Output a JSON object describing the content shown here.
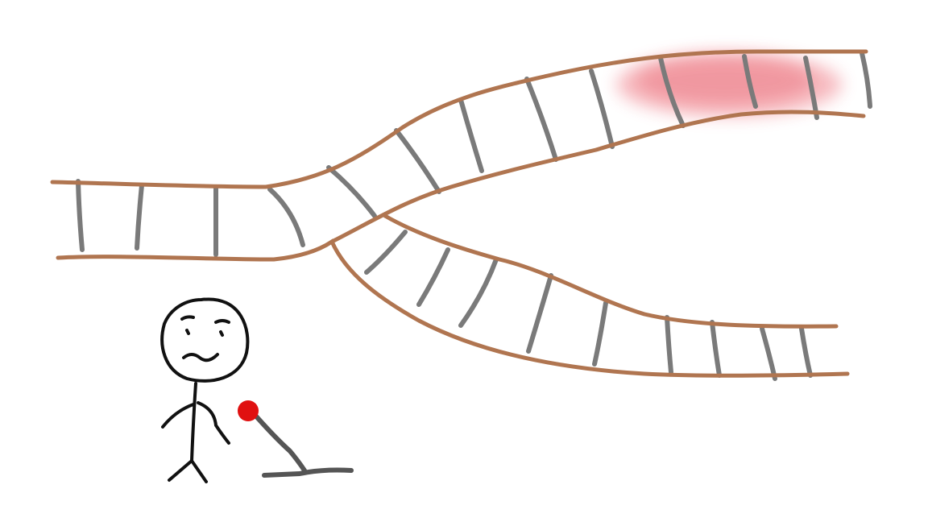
{
  "scene": {
    "description_free": true
  },
  "colors": {
    "background": "#ffffff",
    "rail": "#b07550",
    "tie": "#7a7a7a",
    "figure": "#111111",
    "lever_handle": "#555555",
    "lever_knob": "#e01010",
    "blood": "#e03040"
  },
  "icons": {
    "lever": "lever-icon",
    "person": "stick-figure-icon"
  }
}
